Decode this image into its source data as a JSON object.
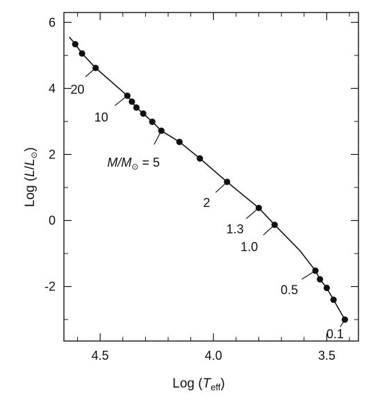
{
  "chart_data": {
    "type": "line",
    "title": "",
    "xlabel": {
      "prefix": "Log (",
      "symbol": "T",
      "subscript": "eff",
      "suffix": ")"
    },
    "ylabel": {
      "prefix": "Log (",
      "symbol": "L",
      "slash": "/",
      "symbol2": "L",
      "subscript": "⊙",
      "suffix": ")"
    },
    "x_reversed": true,
    "xlim": [
      4.66,
      3.36
    ],
    "ylim": [
      -3.65,
      6.3
    ],
    "x_ticks": [
      {
        "value": 4.5,
        "label": "4.5"
      },
      {
        "value": 4.0,
        "label": "4.0"
      },
      {
        "value": 3.5,
        "label": "3.5"
      }
    ],
    "y_ticks": [
      {
        "value": 6,
        "label": "6"
      },
      {
        "value": 4,
        "label": "4"
      },
      {
        "value": 2,
        "label": "2"
      },
      {
        "value": 0,
        "label": "0"
      },
      {
        "value": -2,
        "label": "-2"
      }
    ],
    "grid": false,
    "series": [
      {
        "line_color": "#111111",
        "curve": [
          {
            "x": 4.635,
            "y": 5.55
          },
          {
            "x": 4.61,
            "y": 5.34
          },
          {
            "x": 4.58,
            "y": 5.06
          },
          {
            "x": 4.52,
            "y": 4.62
          },
          {
            "x": 4.38,
            "y": 3.78
          },
          {
            "x": 4.36,
            "y": 3.6
          },
          {
            "x": 4.34,
            "y": 3.42
          },
          {
            "x": 4.31,
            "y": 3.24
          },
          {
            "x": 4.27,
            "y": 2.99
          },
          {
            "x": 4.23,
            "y": 2.72
          },
          {
            "x": 4.15,
            "y": 2.38
          },
          {
            "x": 4.06,
            "y": 1.88
          },
          {
            "x": 3.94,
            "y": 1.17
          },
          {
            "x": 3.8,
            "y": 0.38
          },
          {
            "x": 3.73,
            "y": -0.13
          },
          {
            "x": 3.62,
            "y": -0.9
          },
          {
            "x": 3.55,
            "y": -1.52
          },
          {
            "x": 3.53,
            "y": -1.78
          },
          {
            "x": 3.5,
            "y": -2.04
          },
          {
            "x": 3.47,
            "y": -2.4
          },
          {
            "x": 3.42,
            "y": -3.0
          }
        ],
        "points": [
          {
            "x": 4.61,
            "y": 5.34
          },
          {
            "x": 4.58,
            "y": 5.06
          },
          {
            "x": 4.52,
            "y": 4.62
          },
          {
            "x": 4.38,
            "y": 3.78
          },
          {
            "x": 4.36,
            "y": 3.6
          },
          {
            "x": 4.34,
            "y": 3.42
          },
          {
            "x": 4.31,
            "y": 3.24
          },
          {
            "x": 4.27,
            "y": 2.99
          },
          {
            "x": 4.23,
            "y": 2.72
          },
          {
            "x": 4.15,
            "y": 2.38
          },
          {
            "x": 4.06,
            "y": 1.88
          },
          {
            "x": 3.94,
            "y": 1.17
          },
          {
            "x": 3.8,
            "y": 0.38
          },
          {
            "x": 3.73,
            "y": -0.13
          },
          {
            "x": 3.55,
            "y": -1.52
          },
          {
            "x": 3.53,
            "y": -1.78
          },
          {
            "x": 3.5,
            "y": -2.04
          },
          {
            "x": 3.47,
            "y": -2.4
          },
          {
            "x": 3.42,
            "y": -3.0
          }
        ]
      }
    ],
    "annotations": [
      {
        "text": "20",
        "point": {
          "x": 4.52,
          "y": 4.62
        },
        "leader_end": {
          "x": 4.565,
          "y": 4.35
        },
        "label_at": {
          "x": 4.6,
          "y": 3.96
        }
      },
      {
        "text": "10",
        "point": {
          "x": 4.38,
          "y": 3.78
        },
        "leader_end": {
          "x": 4.435,
          "y": 3.48
        },
        "label_at": {
          "x": 4.495,
          "y": 3.12
        }
      },
      {
        "text": "5",
        "prefix": "M/M",
        "prefix_sub": "⊙",
        "prefix_eq": " = ",
        "point": {
          "x": 4.23,
          "y": 2.72
        },
        "leader_end": {
          "x": 4.262,
          "y": 2.3
        },
        "label_at": {
          "x": 4.237,
          "y": 1.76
        }
      },
      {
        "text": "2",
        "point": {
          "x": 3.94,
          "y": 1.17
        },
        "leader_end": {
          "x": 3.99,
          "y": 0.85
        },
        "label_at": {
          "x": 4.03,
          "y": 0.54
        }
      },
      {
        "text": "1.3",
        "point": {
          "x": 3.8,
          "y": 0.38
        },
        "leader_end": {
          "x": 3.855,
          "y": 0.06
        },
        "label_at": {
          "x": 3.905,
          "y": -0.26
        }
      },
      {
        "text": "1.0",
        "point": {
          "x": 3.73,
          "y": -0.13
        },
        "leader_end": {
          "x": 3.78,
          "y": -0.44
        },
        "label_at": {
          "x": 3.842,
          "y": -0.8
        }
      },
      {
        "text": "0.5",
        "point": {
          "x": 3.55,
          "y": -1.52
        },
        "leader_end": {
          "x": 3.61,
          "y": -1.78
        },
        "label_at": {
          "x": 3.665,
          "y": -2.1
        }
      },
      {
        "text": "0.1",
        "point": {
          "x": 3.42,
          "y": -3.0
        },
        "leader_end": {
          "x": 3.44,
          "y": -3.22
        },
        "label_at": {
          "x": 3.463,
          "y": -3.44
        }
      }
    ]
  }
}
